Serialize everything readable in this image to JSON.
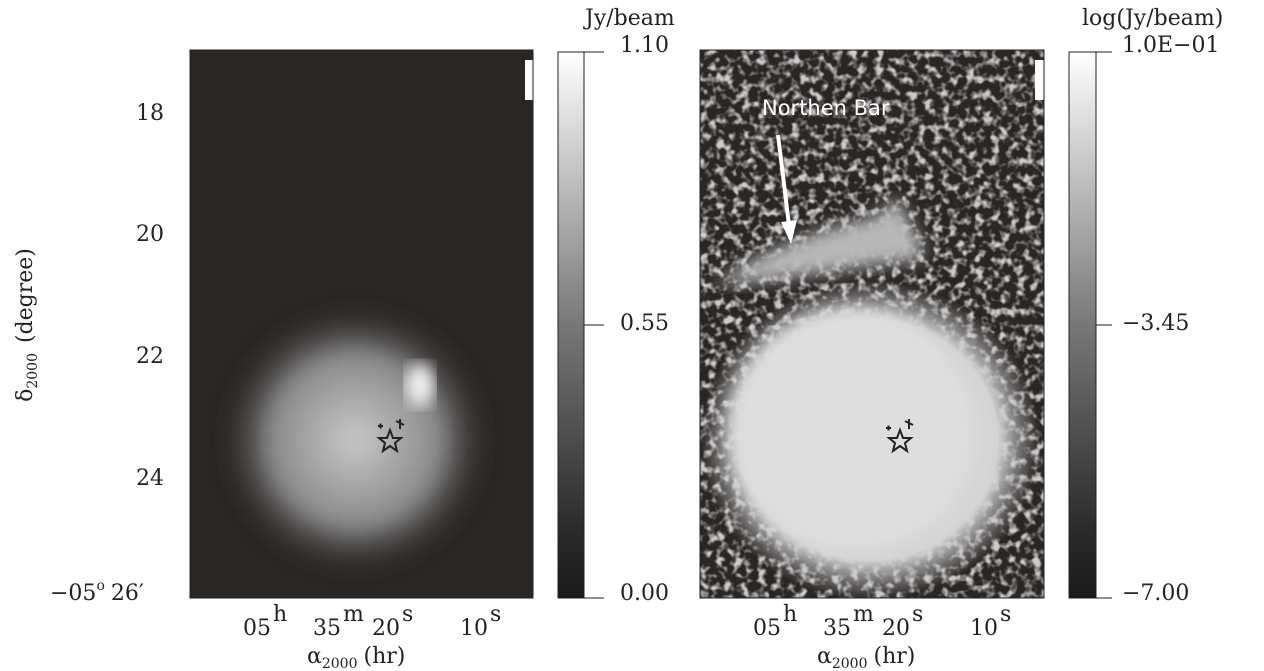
{
  "y_axis": {
    "ticks": [
      "18",
      "20",
      "22",
      "24"
    ],
    "origin": {
      "text": "−05",
      "sup": "o",
      "tail": "26′"
    },
    "label": {
      "symbol": "δ",
      "sub": "2000",
      "text": "(degree)"
    }
  },
  "x_axis": {
    "ticks": [
      {
        "text": "05",
        "sup": "h"
      },
      {
        "text": "35",
        "sup": "m"
      },
      {
        "text": "20",
        "sup": "s"
      },
      {
        "text": "10",
        "sup": "s"
      }
    ],
    "label": {
      "symbol": "α",
      "sub": "2000",
      "text": "(hr)"
    }
  },
  "panels": [
    {
      "colorbar_title": "Jy/beam",
      "colorbar_ticks": [
        "1.10",
        "0.55",
        "0.00"
      ]
    },
    {
      "colorbar_title": "log(Jy/beam)",
      "colorbar_ticks": [
        "1.0E−01",
        "−3.45",
        "−7.00"
      ],
      "annotation": "Northen Bar"
    }
  ]
}
